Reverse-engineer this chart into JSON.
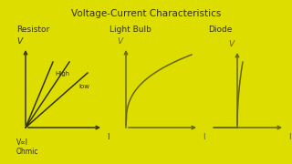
{
  "bg_color": "#dddd00",
  "line_color_dark": "#333300",
  "line_color_mid": "#666600",
  "title": "Voltage-Current Characteristics",
  "title_fontsize": 7.5,
  "label_resistor": "Resistor",
  "label_lightbulb": "Light Bulb",
  "label_diode": "Diode",
  "label_V_alpha_I": "V∝I",
  "label_Ohmic": "Ohmic",
  "label_High": "High",
  "label_low": "low"
}
